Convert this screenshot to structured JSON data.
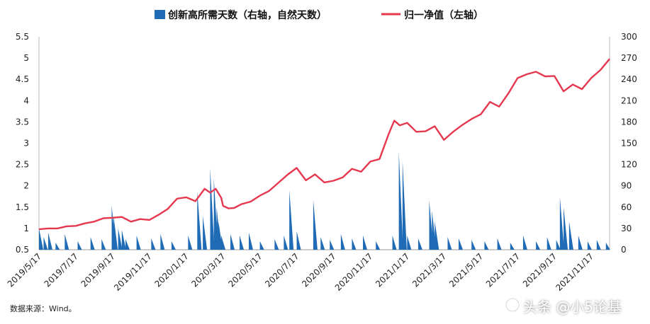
{
  "chart_data": {
    "type": "bar+line",
    "legend": {
      "bar_label": "创新高所需天数（右轴，自然天数）",
      "line_label": "归一净值（左轴）",
      "placement": "top-center"
    },
    "left_axis": {
      "ticks": [
        "0.5",
        "1",
        "1.5",
        "2",
        "2.5",
        "3",
        "3.5",
        "4",
        "4.5",
        "5",
        "5.5"
      ],
      "ylim": [
        0.5,
        5.5
      ]
    },
    "right_axis": {
      "ticks": [
        "0",
        "30",
        "60",
        "90",
        "120",
        "150",
        "180",
        "210",
        "240",
        "270",
        "300"
      ],
      "ylim": [
        0,
        300
      ]
    },
    "x_ticks": [
      "2019/5/17",
      "2019/7/17",
      "2019/9/17",
      "2019/11/17",
      "2020/1/17",
      "2020/3/17",
      "2020/5/17",
      "2020/7/17",
      "2020/9/17",
      "2020/11/17",
      "2021/1/17",
      "2021/3/17",
      "2021/5/17",
      "2021/7/17",
      "2021/9/17",
      "2021/11/17"
    ],
    "line_series": {
      "name": "归一净值（左轴）",
      "x_month_offset": [
        0,
        0.5,
        1,
        1.5,
        2,
        2.5,
        3,
        3.5,
        4,
        4.5,
        5,
        5.5,
        6,
        6.5,
        7,
        7.5,
        8,
        8.5,
        9,
        9.3,
        9.6,
        9.9,
        10,
        10.3,
        10.6,
        11,
        11.5,
        12,
        12.5,
        13,
        13.5,
        14,
        14.5,
        15,
        15.5,
        16,
        16.5,
        17,
        17.5,
        18,
        18.5,
        19,
        19.3,
        19.6,
        20,
        20.5,
        21,
        21.5,
        22,
        22.5,
        23,
        23.5,
        24,
        24.5,
        25,
        25.5,
        26,
        26.5,
        27,
        27.5,
        28,
        28.5,
        29,
        29.5,
        30,
        30.5,
        31
      ],
      "values": [
        1.0,
        0.98,
        1.02,
        1.03,
        1.08,
        1.1,
        1.18,
        1.22,
        1.27,
        1.25,
        1.18,
        1.2,
        1.22,
        1.3,
        1.48,
        1.68,
        1.75,
        1.62,
        1.95,
        1.82,
        1.95,
        1.7,
        1.55,
        1.45,
        1.5,
        1.55,
        1.65,
        1.75,
        1.9,
        2.05,
        2.28,
        2.4,
        2.15,
        2.25,
        2.1,
        2.1,
        2.22,
        2.38,
        2.35,
        2.55,
        2.65,
        3.2,
        3.55,
        3.4,
        3.5,
        3.25,
        3.3,
        3.38,
        3.1,
        3.25,
        3.45,
        3.55,
        3.7,
        3.95,
        3.88,
        4.15,
        4.55,
        4.6,
        4.7,
        4.55,
        4.6,
        4.2,
        4.4,
        4.25,
        4.55,
        4.7,
        5.0
      ]
    },
    "bar_series": {
      "name": "创新高所需天数（右轴，自然天数）",
      "x_month_offset": [
        0,
        0.25,
        0.5,
        0.9,
        1.4,
        2.1,
        2.8,
        3.4,
        3.95,
        4.05,
        4.3,
        4.5,
        4.7,
        5.3,
        6.1,
        6.6,
        7.2,
        8.1,
        8.6,
        8.9,
        9.3,
        9.5,
        9.65,
        9.75,
        9.9,
        10.4,
        10.9,
        11.4,
        12.0,
        12.8,
        13.3,
        13.6,
        14.0,
        14.9,
        15.3,
        15.8,
        16.4,
        17.0,
        17.6,
        18.3,
        19.2,
        19.55,
        19.75,
        20.0,
        20.6,
        21.2,
        21.35,
        21.5,
        22.2,
        22.8,
        23.5,
        24.2,
        24.9,
        25.6,
        26.3,
        27.0,
        27.6,
        28.1,
        28.3,
        28.5,
        28.8,
        29.3,
        29.8,
        30.3,
        30.8
      ],
      "values": [
        30,
        18,
        24,
        10,
        22,
        12,
        18,
        15,
        62,
        48,
        30,
        28,
        15,
        20,
        16,
        22,
        12,
        20,
        82,
        48,
        115,
        100,
        60,
        40,
        20,
        22,
        20,
        24,
        12,
        15,
        20,
        84,
        26,
        70,
        18,
        14,
        22,
        16,
        20,
        12,
        20,
        138,
        125,
        20,
        16,
        70,
        55,
        40,
        18,
        16,
        14,
        12,
        16,
        10,
        20,
        12,
        18,
        14,
        74,
        60,
        40,
        20,
        12,
        14,
        10
      ]
    }
  },
  "source_note": "数据来源：Wind。",
  "watermark": "头条 @小5论基"
}
